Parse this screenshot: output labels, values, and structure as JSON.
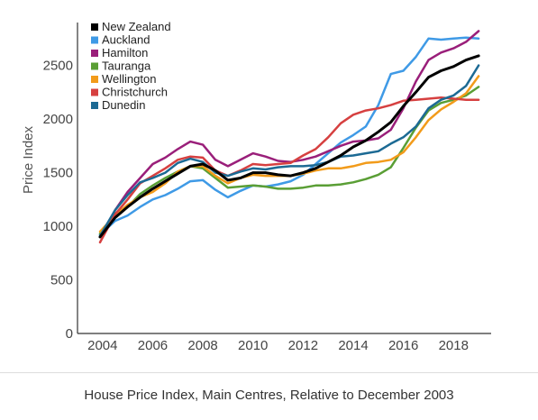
{
  "caption": "House Price Index, Main Centres, Relative to December 2003",
  "chart_data": {
    "type": "line",
    "title": "",
    "xlabel": "",
    "ylabel": "Price Index",
    "xlim": [
      2003,
      2019.5
    ],
    "ylim": [
      0,
      2900
    ],
    "x_ticks": [
      2004,
      2006,
      2008,
      2010,
      2012,
      2014,
      2016,
      2018
    ],
    "y_ticks": [
      0,
      500,
      1000,
      1500,
      2000,
      2500
    ],
    "grid": false,
    "legend": "top-left",
    "x": [
      2003.9,
      2004.5,
      2005,
      2005.5,
      2006,
      2006.5,
      2007,
      2007.5,
      2008,
      2008.5,
      2009,
      2009.5,
      2010,
      2010.5,
      2011,
      2011.5,
      2012,
      2012.5,
      2013,
      2013.5,
      2014,
      2014.5,
      2015,
      2015.5,
      2016,
      2016.5,
      2017,
      2017.5,
      2018,
      2018.5,
      2019
    ],
    "series": [
      {
        "name": "New Zealand",
        "color": "#000000",
        "width": 3,
        "values": [
          900,
          1080,
          1180,
          1270,
          1350,
          1420,
          1490,
          1560,
          1580,
          1520,
          1430,
          1450,
          1500,
          1500,
          1480,
          1470,
          1500,
          1540,
          1600,
          1660,
          1740,
          1800,
          1880,
          1970,
          2120,
          2250,
          2390,
          2450,
          2490,
          2550,
          2590
        ]
      },
      {
        "name": "Auckland",
        "color": "#3f9ae6",
        "width": 2.5,
        "values": [
          920,
          1050,
          1100,
          1180,
          1250,
          1290,
          1350,
          1420,
          1430,
          1340,
          1270,
          1330,
          1380,
          1370,
          1390,
          1420,
          1480,
          1580,
          1680,
          1780,
          1850,
          1930,
          2130,
          2420,
          2450,
          2580,
          2750,
          2740,
          2750,
          2760,
          2750
        ]
      },
      {
        "name": "Hamilton",
        "color": "#9a1f7a",
        "width": 2.5,
        "values": [
          900,
          1150,
          1320,
          1450,
          1580,
          1640,
          1720,
          1790,
          1760,
          1620,
          1560,
          1620,
          1680,
          1650,
          1610,
          1600,
          1620,
          1650,
          1700,
          1750,
          1790,
          1800,
          1820,
          1900,
          2100,
          2350,
          2550,
          2620,
          2660,
          2720,
          2820
        ]
      },
      {
        "name": "Tauranga",
        "color": "#5a9e35",
        "width": 2.5,
        "values": [
          930,
          1120,
          1180,
          1300,
          1380,
          1450,
          1510,
          1560,
          1540,
          1450,
          1360,
          1370,
          1380,
          1370,
          1350,
          1350,
          1360,
          1380,
          1380,
          1390,
          1410,
          1440,
          1480,
          1550,
          1730,
          1920,
          2080,
          2150,
          2180,
          2220,
          2300
        ]
      },
      {
        "name": "Wellington",
        "color": "#f29b1a",
        "width": 2.5,
        "values": [
          950,
          1100,
          1200,
          1270,
          1320,
          1400,
          1510,
          1560,
          1560,
          1470,
          1400,
          1450,
          1480,
          1470,
          1470,
          1470,
          1490,
          1520,
          1540,
          1540,
          1560,
          1590,
          1600,
          1620,
          1690,
          1830,
          1990,
          2090,
          2160,
          2240,
          2400
        ]
      },
      {
        "name": "Christchurch",
        "color": "#d64040",
        "width": 2.5,
        "values": [
          850,
          1110,
          1250,
          1400,
          1470,
          1540,
          1620,
          1650,
          1640,
          1520,
          1470,
          1520,
          1580,
          1570,
          1580,
          1590,
          1660,
          1720,
          1830,
          1960,
          2040,
          2080,
          2100,
          2130,
          2170,
          2180,
          2190,
          2200,
          2190,
          2180,
          2180
        ]
      },
      {
        "name": "Dunedin",
        "color": "#1c6a94",
        "width": 2.5,
        "values": [
          910,
          1150,
          1290,
          1410,
          1450,
          1500,
          1590,
          1630,
          1600,
          1500,
          1470,
          1510,
          1540,
          1530,
          1550,
          1560,
          1560,
          1570,
          1600,
          1650,
          1660,
          1680,
          1700,
          1770,
          1830,
          1930,
          2100,
          2180,
          2220,
          2310,
          2500
        ]
      }
    ]
  }
}
